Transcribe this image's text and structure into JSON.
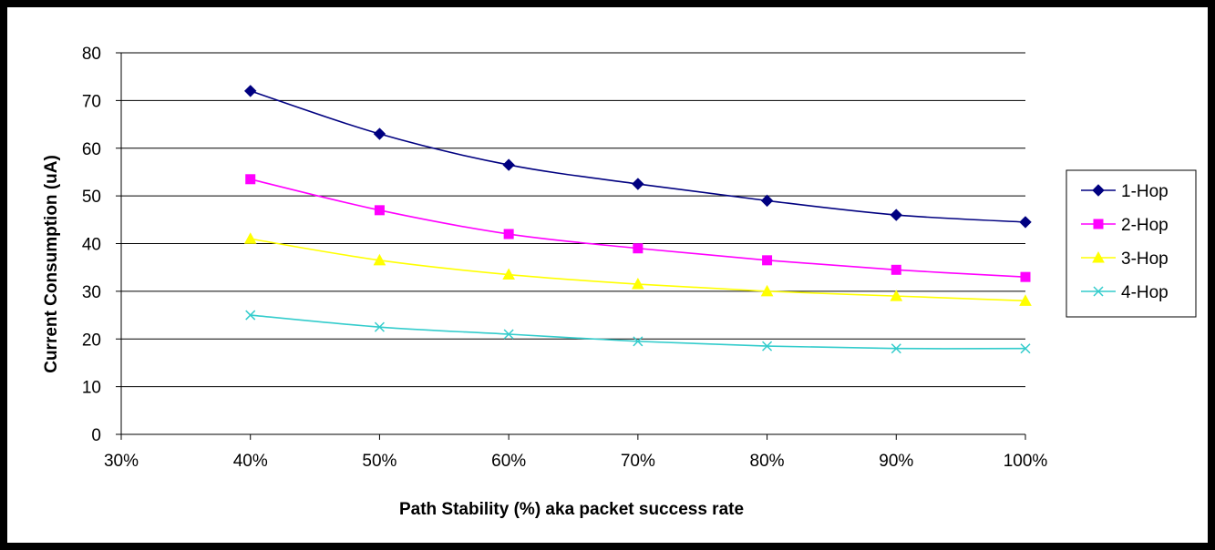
{
  "chart_data": {
    "type": "line",
    "title": "",
    "xlabel": "Path Stability (%) aka packet success rate",
    "ylabel": "Current Consumption (uA)",
    "x_ticks": [
      "30%",
      "40%",
      "50%",
      "60%",
      "70%",
      "80%",
      "90%",
      "100%"
    ],
    "x_tick_values": [
      30,
      40,
      50,
      60,
      70,
      80,
      90,
      100
    ],
    "y_ticks": [
      "0",
      "10",
      "20",
      "30",
      "40",
      "50",
      "60",
      "70",
      "80"
    ],
    "y_tick_values": [
      0,
      10,
      20,
      30,
      40,
      50,
      60,
      70,
      80
    ],
    "xlim": [
      30,
      100
    ],
    "ylim": [
      0,
      80
    ],
    "grid": "horizontal",
    "legend_position": "right",
    "x": [
      40,
      50,
      60,
      70,
      80,
      90,
      100
    ],
    "series": [
      {
        "name": "1-Hop",
        "color": "#000080",
        "marker": "diamond",
        "values": [
          72,
          63,
          56.5,
          52.5,
          49,
          46,
          44.5
        ]
      },
      {
        "name": "2-Hop",
        "color": "#ff00ff",
        "marker": "square",
        "values": [
          53.5,
          47,
          42,
          39,
          36.5,
          34.5,
          33
        ]
      },
      {
        "name": "3-Hop",
        "color": "#ffff00",
        "marker": "triangle",
        "values": [
          41,
          36.5,
          33.5,
          31.5,
          30,
          29,
          28
        ]
      },
      {
        "name": "4-Hop",
        "color": "#33cccc",
        "marker": "x",
        "values": [
          25,
          22.5,
          21,
          19.5,
          18.5,
          18,
          18
        ]
      }
    ]
  }
}
